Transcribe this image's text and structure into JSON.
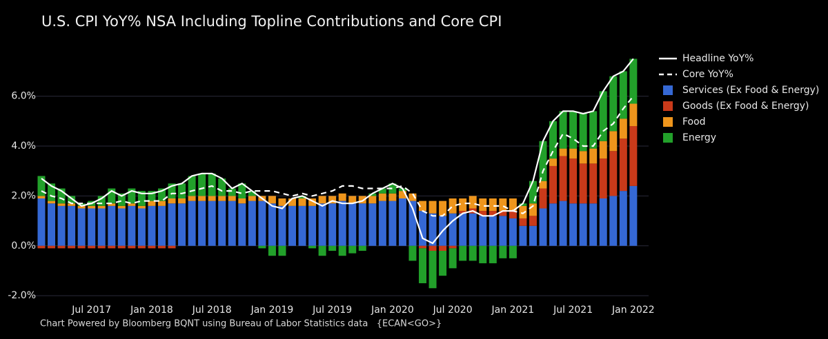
{
  "chart_data": {
    "type": "bar",
    "stacking": "relative",
    "title": "U.S. CPI YoY% NSA Including Topline Contributions and Core CPI",
    "footnote": "Chart Powered by Bloomberg BQNT using Bureau of Labor Statistics data   {ECAN<GO>}",
    "categories": [
      null,
      null,
      null,
      null,
      null,
      "Jul 2017",
      null,
      null,
      null,
      null,
      null,
      "Jan 2018",
      null,
      null,
      null,
      null,
      null,
      "Jul 2018",
      null,
      null,
      null,
      null,
      null,
      "Jan 2019",
      null,
      null,
      null,
      null,
      null,
      "Jul 2019",
      null,
      null,
      null,
      null,
      null,
      "Jan 2020",
      null,
      null,
      null,
      null,
      null,
      "Jul 2020",
      null,
      null,
      null,
      null,
      null,
      "Jan 2021",
      null,
      null,
      null,
      null,
      null,
      "Jul 2021",
      null,
      null,
      null,
      null,
      null,
      "Jan 2022"
    ],
    "ylim": [
      -2.3,
      8.2
    ],
    "yticks": [
      {
        "value": -2,
        "label": "-2.0%"
      },
      {
        "value": 0,
        "label": "0.0%"
      },
      {
        "value": 2,
        "label": "2.0%"
      },
      {
        "value": 4,
        "label": "4.0%"
      },
      {
        "value": 6,
        "label": "6.0%"
      }
    ],
    "grid": true,
    "series": [
      {
        "name": "Headline YoY%",
        "type": "line",
        "color": "#ffffff",
        "dash": false,
        "values": [
          2.7,
          2.4,
          2.2,
          1.9,
          1.6,
          1.7,
          1.9,
          2.2,
          2.0,
          2.2,
          2.1,
          2.1,
          2.2,
          2.4,
          2.5,
          2.8,
          2.9,
          2.9,
          2.7,
          2.3,
          2.5,
          2.2,
          1.9,
          1.6,
          1.5,
          1.9,
          2.0,
          1.8,
          1.6,
          1.8,
          1.7,
          1.7,
          1.8,
          2.1,
          2.3,
          2.5,
          2.3,
          1.5,
          0.3,
          0.1,
          0.6,
          1.0,
          1.3,
          1.4,
          1.2,
          1.2,
          1.4,
          1.4,
          1.7,
          2.6,
          4.2,
          5.0,
          5.4,
          5.4,
          5.3,
          5.4,
          6.2,
          6.8,
          7.0,
          7.5
        ]
      },
      {
        "name": "Core YoY%",
        "type": "line",
        "color": "#ffffff",
        "dash": true,
        "values": [
          2.2,
          2.0,
          1.9,
          1.7,
          1.7,
          1.7,
          1.7,
          1.7,
          1.8,
          1.7,
          1.8,
          1.8,
          1.8,
          2.1,
          2.1,
          2.2,
          2.3,
          2.4,
          2.2,
          2.2,
          2.1,
          2.2,
          2.2,
          2.2,
          2.1,
          2.0,
          2.1,
          2.0,
          2.1,
          2.2,
          2.4,
          2.4,
          2.3,
          2.3,
          2.3,
          2.3,
          2.4,
          2.1,
          1.4,
          1.2,
          1.2,
          1.6,
          1.7,
          1.7,
          1.6,
          1.6,
          1.6,
          1.4,
          1.3,
          1.6,
          3.0,
          3.8,
          4.5,
          4.3,
          4.0,
          4.0,
          4.6,
          4.9,
          5.5,
          6.0
        ]
      },
      {
        "name": "Services (Ex Food & Energy)",
        "type": "bar",
        "color": "#3568d4",
        "values": [
          1.9,
          1.7,
          1.6,
          1.6,
          1.5,
          1.5,
          1.5,
          1.6,
          1.5,
          1.6,
          1.5,
          1.6,
          1.6,
          1.7,
          1.7,
          1.8,
          1.8,
          1.8,
          1.8,
          1.8,
          1.7,
          1.8,
          1.8,
          1.7,
          1.6,
          1.6,
          1.6,
          1.6,
          1.7,
          1.7,
          1.8,
          1.7,
          1.7,
          1.7,
          1.8,
          1.8,
          1.9,
          1.8,
          1.4,
          1.3,
          1.2,
          1.3,
          1.3,
          1.3,
          1.2,
          1.2,
          1.2,
          1.1,
          0.8,
          0.8,
          1.5,
          1.7,
          1.8,
          1.7,
          1.7,
          1.7,
          1.9,
          2.0,
          2.2,
          2.4
        ]
      },
      {
        "name": "Goods (Ex Food & Energy)",
        "type": "bar",
        "color": "#c93a1a",
        "values": [
          -0.1,
          -0.1,
          -0.1,
          -0.1,
          -0.1,
          -0.1,
          -0.1,
          -0.1,
          -0.1,
          -0.1,
          -0.1,
          -0.1,
          -0.1,
          -0.1,
          0,
          0,
          0,
          0,
          0,
          0,
          0,
          0,
          0,
          0,
          0,
          0,
          0,
          0,
          0,
          0,
          0,
          0,
          0,
          0,
          0,
          0,
          0,
          0,
          -0.1,
          -0.2,
          -0.2,
          -0.1,
          0.1,
          0.2,
          0.2,
          0.2,
          0.2,
          0.3,
          0.3,
          0.4,
          0.8,
          1.5,
          1.8,
          1.8,
          1.6,
          1.6,
          1.6,
          1.8,
          2.1,
          2.4
        ]
      },
      {
        "name": "Food",
        "type": "bar",
        "color": "#ee951c",
        "values": [
          0.1,
          0.1,
          0.1,
          0.1,
          0.1,
          0.1,
          0.1,
          0.1,
          0.1,
          0.1,
          0.1,
          0.2,
          0.2,
          0.2,
          0.2,
          0.2,
          0.2,
          0.2,
          0.2,
          0.2,
          0.2,
          0.2,
          0.2,
          0.3,
          0.3,
          0.3,
          0.3,
          0.3,
          0.3,
          0.3,
          0.3,
          0.3,
          0.3,
          0.3,
          0.3,
          0.3,
          0.3,
          0.3,
          0.4,
          0.5,
          0.6,
          0.6,
          0.5,
          0.5,
          0.5,
          0.5,
          0.5,
          0.5,
          0.5,
          0.5,
          0.3,
          0.3,
          0.3,
          0.4,
          0.5,
          0.6,
          0.7,
          0.8,
          0.8,
          0.9
        ]
      },
      {
        "name": "Energy",
        "type": "bar",
        "color": "#22a02a",
        "values": [
          0.8,
          0.7,
          0.6,
          0.3,
          0.1,
          0.2,
          0.4,
          0.6,
          0.5,
          0.6,
          0.6,
          0.4,
          0.5,
          0.6,
          0.6,
          0.8,
          0.9,
          0.9,
          0.7,
          0.3,
          0.6,
          0.2,
          -0.1,
          -0.4,
          -0.4,
          0.0,
          0.1,
          -0.1,
          -0.4,
          -0.2,
          -0.4,
          -0.3,
          -0.2,
          0.1,
          0.2,
          0.4,
          0.1,
          -0.6,
          -1.4,
          -1.5,
          -1.0,
          -0.8,
          -0.6,
          -0.6,
          -0.7,
          -0.7,
          -0.5,
          -0.5,
          0.1,
          0.9,
          1.6,
          1.5,
          1.5,
          1.5,
          1.5,
          1.5,
          2.0,
          2.2,
          1.9,
          1.8
        ]
      }
    ]
  }
}
